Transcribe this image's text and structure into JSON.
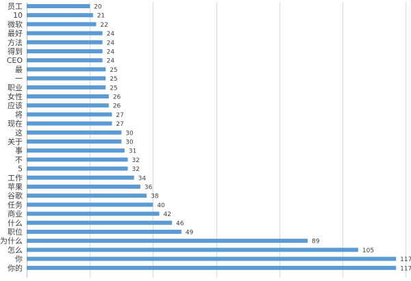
{
  "chart_data": {
    "type": "bar",
    "orientation": "horizontal",
    "title": "",
    "xlabel": "",
    "ylabel": "",
    "xlim": [
      0,
      120
    ],
    "grid": true,
    "legend": "none",
    "colors": {
      "bar": "#5b9bd5",
      "grid": "#d9d9d9",
      "text": "#404040"
    },
    "categories": [
      "员工",
      "10",
      "微软",
      "最好",
      "方法",
      "得到",
      "CEO",
      "最",
      "一",
      "职业",
      "女性",
      "应该",
      "将",
      "现在",
      "这",
      "关于",
      "事",
      "不",
      "5",
      "工作",
      "苹果",
      "谷歌",
      "任务",
      "商业",
      "什么",
      "职位",
      "为什么",
      "怎么",
      "你",
      "你的"
    ],
    "values": [
      20,
      21,
      22,
      24,
      24,
      24,
      24,
      25,
      25,
      25,
      26,
      26,
      27,
      27,
      30,
      30,
      31,
      32,
      32,
      34,
      36,
      38,
      40,
      42,
      46,
      49,
      89,
      105,
      117,
      117
    ]
  }
}
